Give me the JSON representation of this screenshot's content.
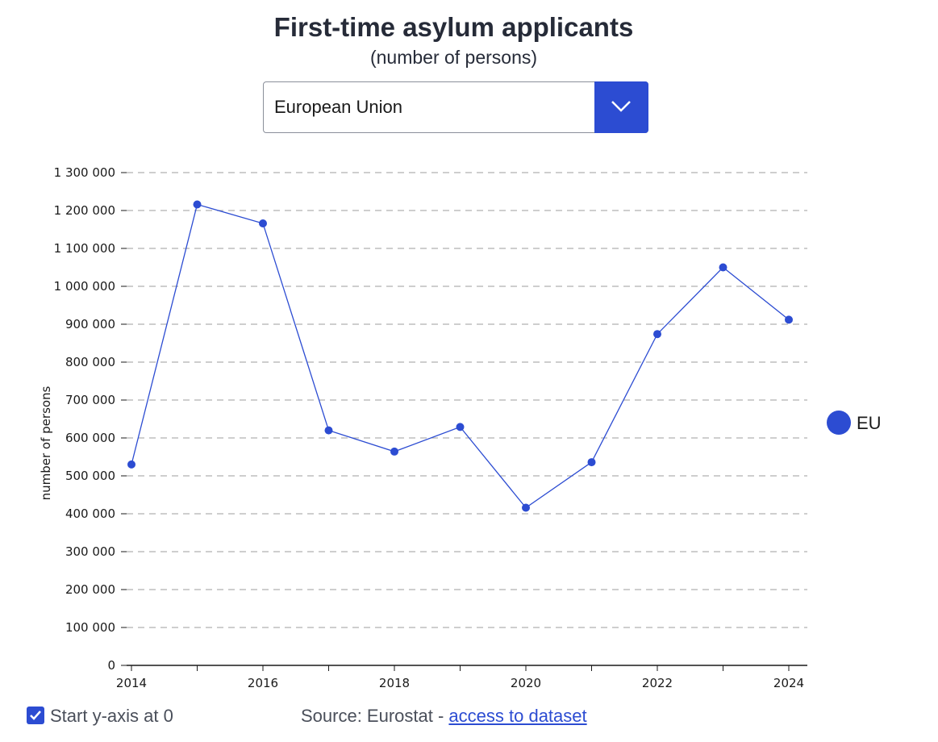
{
  "header": {
    "title": "First-time asylum applicants",
    "subtitle": "(number of persons)"
  },
  "selector": {
    "value": "European Union",
    "icon": "chevron-down-icon"
  },
  "footer": {
    "checkbox_label": "Start y-axis at 0",
    "checkbox_checked": true,
    "source_prefix": "Source: Eurostat - ",
    "source_link": "access to dataset"
  },
  "colors": {
    "series": "#2c4cd2",
    "accent": "#2c4cd2",
    "grid": "#b0b0b0"
  },
  "chart_data": {
    "type": "line",
    "title": "First-time asylum applicants",
    "subtitle": "(number of persons)",
    "xlabel": "",
    "ylabel": "number of persons",
    "x": [
      2014,
      2015,
      2016,
      2017,
      2018,
      2019,
      2020,
      2021,
      2022,
      2023,
      2024
    ],
    "x_tick_labels": [
      "2014",
      "2016",
      "2018",
      "2020",
      "2022",
      "2024"
    ],
    "x_tick_values": [
      2014,
      2016,
      2018,
      2020,
      2022,
      2024
    ],
    "xlim": [
      2014,
      2024
    ],
    "ylim": [
      0,
      1300000
    ],
    "y_tick_values": [
      0,
      100000,
      200000,
      300000,
      400000,
      500000,
      600000,
      700000,
      800000,
      900000,
      1000000,
      1100000,
      1200000,
      1300000
    ],
    "y_tick_labels": [
      "0",
      "100 000",
      "200 000",
      "300 000",
      "400 000",
      "500 000",
      "600 000",
      "700 000",
      "800 000",
      "900 000",
      "1 000 000",
      "1 100 000",
      "1 200 000",
      "1 300 000"
    ],
    "grid": true,
    "legend_position": "right",
    "series": [
      {
        "name": "EU",
        "values": [
          530000,
          1216000,
          1166000,
          620000,
          564000,
          629000,
          416000,
          536000,
          874000,
          1050000,
          912000
        ]
      }
    ]
  }
}
